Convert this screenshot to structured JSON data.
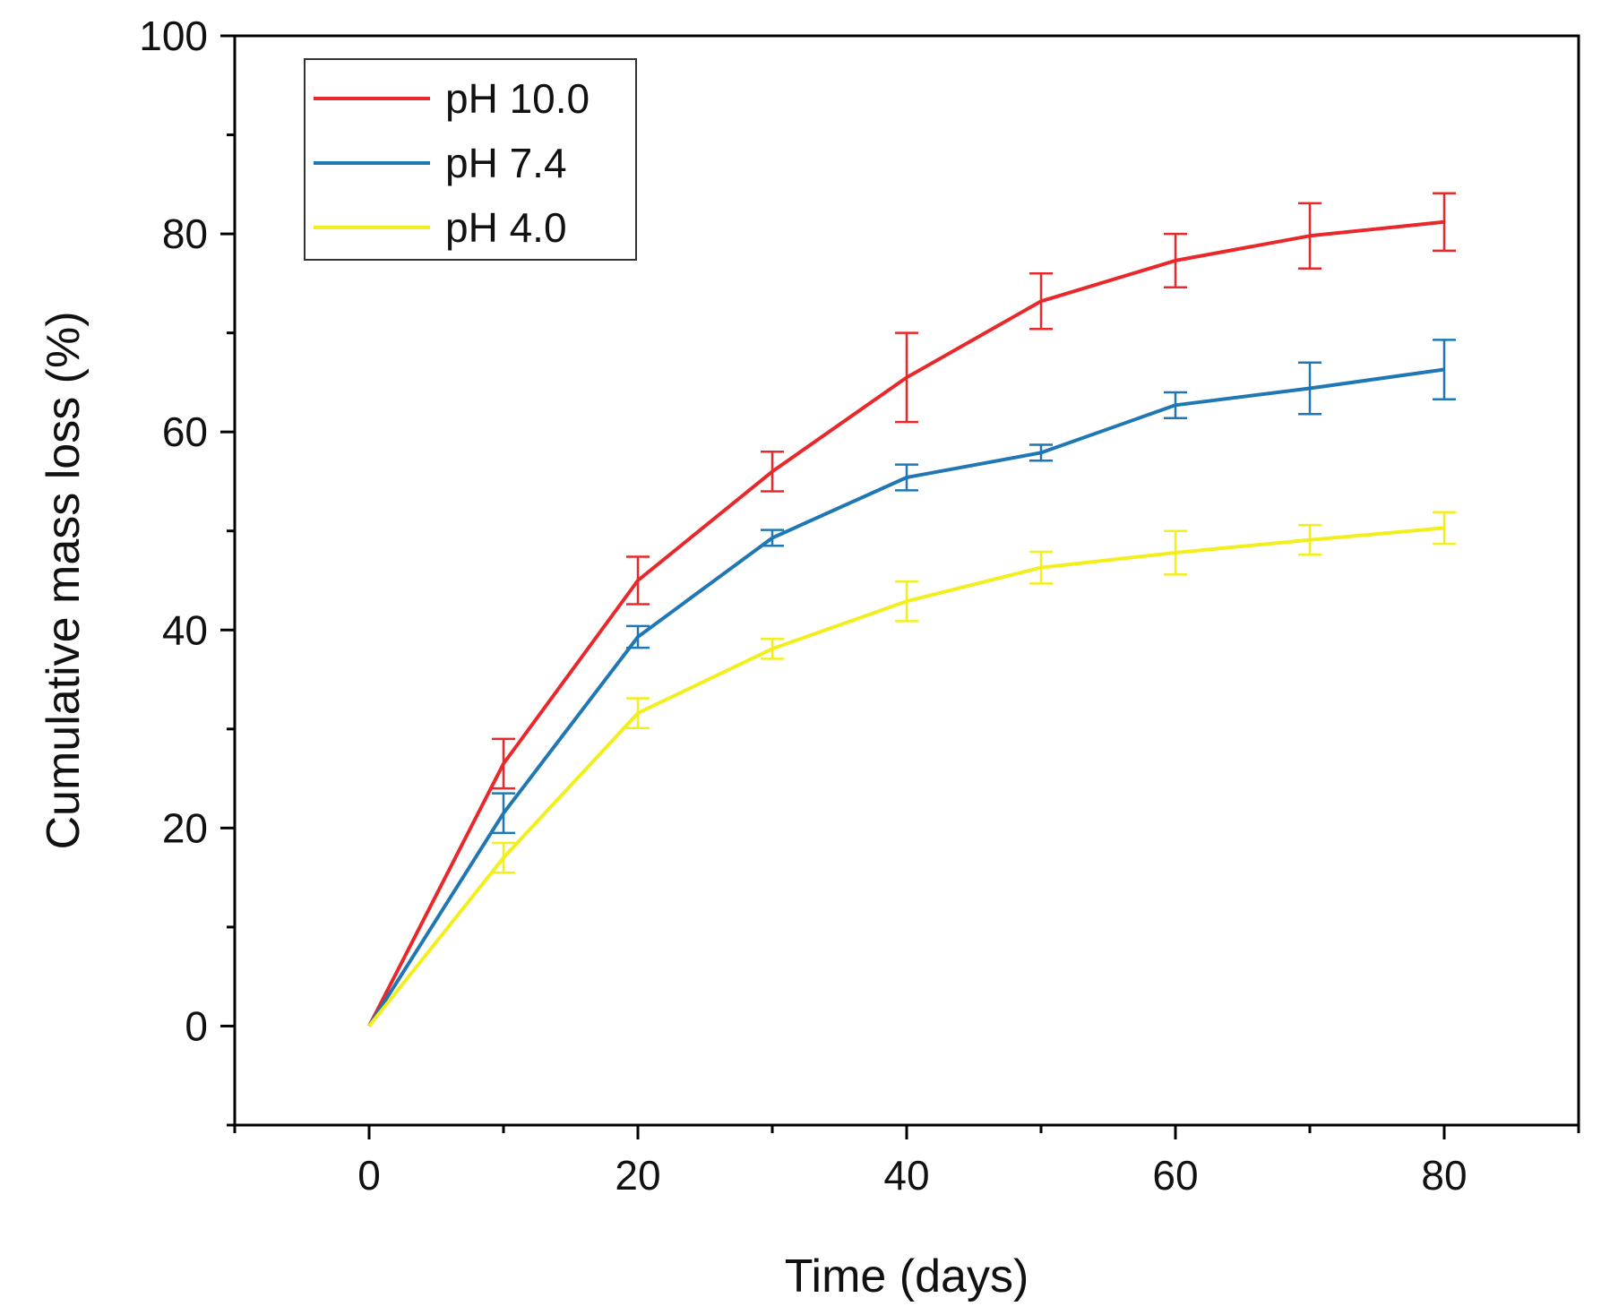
{
  "chart_data": {
    "type": "line",
    "title": "",
    "xlabel": "Time (days)",
    "ylabel": "Cumulative mass loss (%)",
    "xlim": [
      -10,
      90
    ],
    "ylim": [
      -10,
      100
    ],
    "x_ticks": [
      0,
      20,
      40,
      60,
      80
    ],
    "x_tick_labels": [
      "0",
      "20",
      "40",
      "60",
      "80"
    ],
    "x_minor_ticks": [
      -10,
      10,
      30,
      50,
      70,
      90
    ],
    "y_ticks": [
      0,
      20,
      40,
      60,
      80,
      100
    ],
    "y_tick_labels": [
      "0",
      "20",
      "40",
      "60",
      "80",
      "100"
    ],
    "y_minor_ticks": [
      -10,
      10,
      30,
      50,
      70,
      90
    ],
    "grid": false,
    "legend_position": "top-left",
    "x": [
      0,
      10,
      20,
      30,
      40,
      50,
      60,
      70,
      80
    ],
    "series": [
      {
        "name": "pH 10.0",
        "color": "#e8282a",
        "values": [
          0,
          26.5,
          45,
          56,
          65.5,
          73.2,
          77.3,
          79.8,
          81.2
        ],
        "errors": [
          0,
          2.5,
          2.4,
          2.0,
          4.5,
          2.8,
          2.7,
          3.3,
          2.9
        ]
      },
      {
        "name": "pH 7.4",
        "color": "#1f77b4",
        "values": [
          0,
          21.5,
          39.3,
          49.3,
          55.4,
          57.9,
          62.7,
          64.4,
          66.3
        ],
        "errors": [
          0,
          2.0,
          1.1,
          0.8,
          1.3,
          0.8,
          1.3,
          2.6,
          3.0
        ]
      },
      {
        "name": "pH 4.0",
        "color": "#f2ef1c",
        "values": [
          0,
          17.0,
          31.6,
          38.1,
          42.9,
          46.3,
          47.8,
          49.1,
          50.3
        ],
        "errors": [
          0,
          1.5,
          1.5,
          1.0,
          2.0,
          1.6,
          2.2,
          1.5,
          1.6
        ]
      }
    ]
  }
}
